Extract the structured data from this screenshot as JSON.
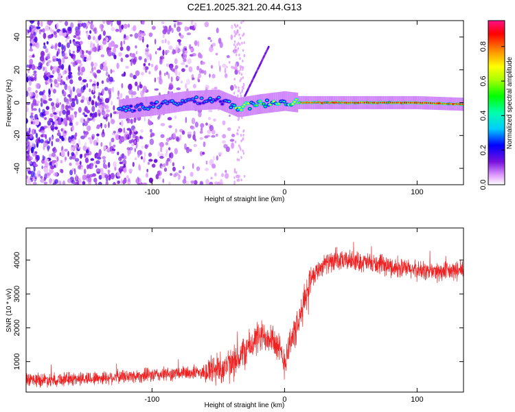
{
  "title": "C2E1.2025.321.20.44.G13",
  "colors": {
    "snr_line": "#ee2222",
    "scatter_low": "#7711dd",
    "ridge_core": "#ff2222"
  },
  "chart_data": [
    {
      "type": "heatmap",
      "name": "spectrogram",
      "xlabel": "Height of straight line (km)",
      "ylabel": "Frequency (Hz)",
      "xlim": [
        -195,
        135
      ],
      "ylim": [
        -50,
        50
      ],
      "xticks": [
        -100,
        0,
        100
      ],
      "yticks": [
        -40,
        -20,
        0,
        20,
        40
      ],
      "grid": false,
      "ridge": {
        "description_points_x": [
          -125,
          -100,
          -75,
          -50,
          -35,
          -20,
          0,
          10,
          50,
          100,
          135
        ],
        "description_points_y": [
          -4,
          -2,
          1,
          2,
          -3,
          -1,
          1,
          0,
          0,
          0,
          -1
        ]
      },
      "colorbar": {
        "label": "Normalized spectral amplitude",
        "range": [
          0.0,
          0.95
        ],
        "ticks": [
          0.0,
          0.2,
          0.4,
          0.6,
          0.8
        ]
      }
    },
    {
      "type": "line",
      "name": "snr",
      "xlabel": "Height of straight line (km)",
      "ylabel": "SNR (10 * v/v)",
      "xlim": [
        -195,
        135
      ],
      "ylim": [
        100,
        4950
      ],
      "xticks": [
        -100,
        0,
        100
      ],
      "yticks": [
        1000,
        2000,
        3000,
        4000
      ],
      "grid": false,
      "series": [
        {
          "name": "SNR",
          "x_anchors": [
            -195,
            -150,
            -100,
            -60,
            -40,
            -30,
            -20,
            -10,
            0,
            5,
            10,
            15,
            20,
            30,
            50,
            80,
            100,
            120,
            135
          ],
          "y_anchors": [
            450,
            500,
            600,
            700,
            900,
            1300,
            1700,
            1800,
            1000,
            1700,
            2000,
            2800,
            3500,
            3900,
            4000,
            3800,
            3700,
            3650,
            3700
          ]
        }
      ]
    }
  ]
}
